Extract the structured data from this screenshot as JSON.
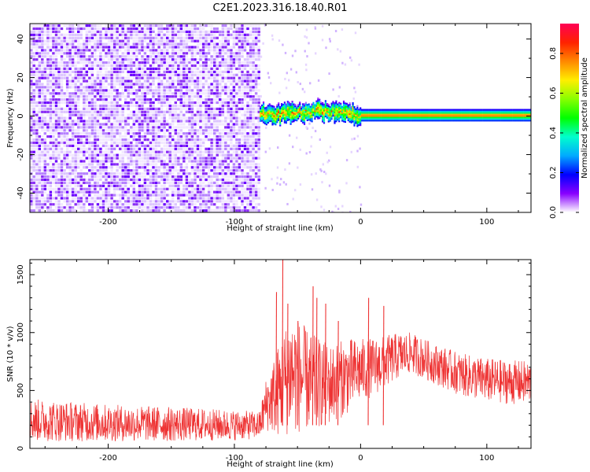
{
  "figure_title": "C2E1.2023.316.18.40.R01",
  "chart_data": [
    {
      "type": "heatmap",
      "xlabel": "Height of straight line (km)",
      "ylabel": "Frequency (Hz)",
      "xlim": [
        -262,
        135
      ],
      "ylim": [
        -50,
        48
      ],
      "x_ticks": [
        -200,
        -100,
        0,
        100
      ],
      "y_ticks": [
        -40,
        -20,
        0,
        20,
        40
      ],
      "colorbar": {
        "label": "Normalized spectral amplitude",
        "range": [
          0,
          0.95
        ],
        "ticks": [
          0.0,
          0.2,
          0.4,
          0.6,
          0.8
        ],
        "colors": [
          "#ff0055",
          "#ff2200",
          "#ff8800",
          "#ffee00",
          "#88ff00",
          "#00ff00",
          "#00ffcc",
          "#00aaff",
          "#0000ff",
          "#8800ff",
          "#ffffff"
        ]
      },
      "regions": [
        {
          "x_from": -262,
          "x_to": -80,
          "description_amplitude": 0.12
        },
        {
          "x_from": -80,
          "x_to": 135,
          "band_center_hz": [
            [
              -80,
              0
            ],
            [
              -60,
              1
            ],
            [
              -40,
              2
            ],
            [
              -20,
              2
            ],
            [
              0,
              0
            ],
            [
              20,
              0
            ],
            [
              135,
              0
            ]
          ],
          "peak_amplitude": 0.85
        }
      ]
    },
    {
      "type": "line",
      "xlabel": "Height of straight line (km)",
      "ylabel": "SNR (10 * v/v)",
      "xlim": [
        -262,
        135
      ],
      "ylim": [
        0,
        1630
      ],
      "x_ticks": [
        -200,
        -100,
        0,
        100
      ],
      "y_ticks": [
        0,
        500,
        1000,
        1500
      ],
      "color": "#ee3333",
      "envelope": [
        {
          "x": -262,
          "low": 60,
          "high": 430
        },
        {
          "x": -200,
          "low": 60,
          "high": 380
        },
        {
          "x": -150,
          "low": 60,
          "high": 360
        },
        {
          "x": -100,
          "low": 70,
          "high": 330
        },
        {
          "x": -80,
          "low": 80,
          "high": 320
        },
        {
          "x": -75,
          "low": 150,
          "high": 600
        },
        {
          "x": -65,
          "low": 100,
          "high": 900
        },
        {
          "x": -55,
          "low": 120,
          "high": 1200
        },
        {
          "x": -40,
          "low": 150,
          "high": 1000
        },
        {
          "x": -25,
          "low": 200,
          "high": 900
        },
        {
          "x": -10,
          "low": 300,
          "high": 950
        },
        {
          "x": 0,
          "low": 400,
          "high": 950
        },
        {
          "x": 10,
          "low": 450,
          "high": 950
        },
        {
          "x": 30,
          "low": 600,
          "high": 1000
        },
        {
          "x": 40,
          "low": 650,
          "high": 1000
        },
        {
          "x": 60,
          "low": 550,
          "high": 900
        },
        {
          "x": 80,
          "low": 450,
          "high": 820
        },
        {
          "x": 100,
          "low": 400,
          "high": 780
        },
        {
          "x": 120,
          "low": 380,
          "high": 760
        },
        {
          "x": 135,
          "low": 380,
          "high": 760
        }
      ],
      "spikes": [
        {
          "x": -67,
          "y": 1350
        },
        {
          "x": -62,
          "y": 1630
        },
        {
          "x": -58,
          "y": 1250
        },
        {
          "x": -50,
          "y": 1100
        },
        {
          "x": -38,
          "y": 1400
        },
        {
          "x": -35,
          "y": 1300
        },
        {
          "x": -28,
          "y": 1250
        },
        {
          "x": -18,
          "y": 1100
        },
        {
          "x": 6,
          "y": 1300
        },
        {
          "x": 18,
          "y": 1230
        }
      ]
    }
  ]
}
